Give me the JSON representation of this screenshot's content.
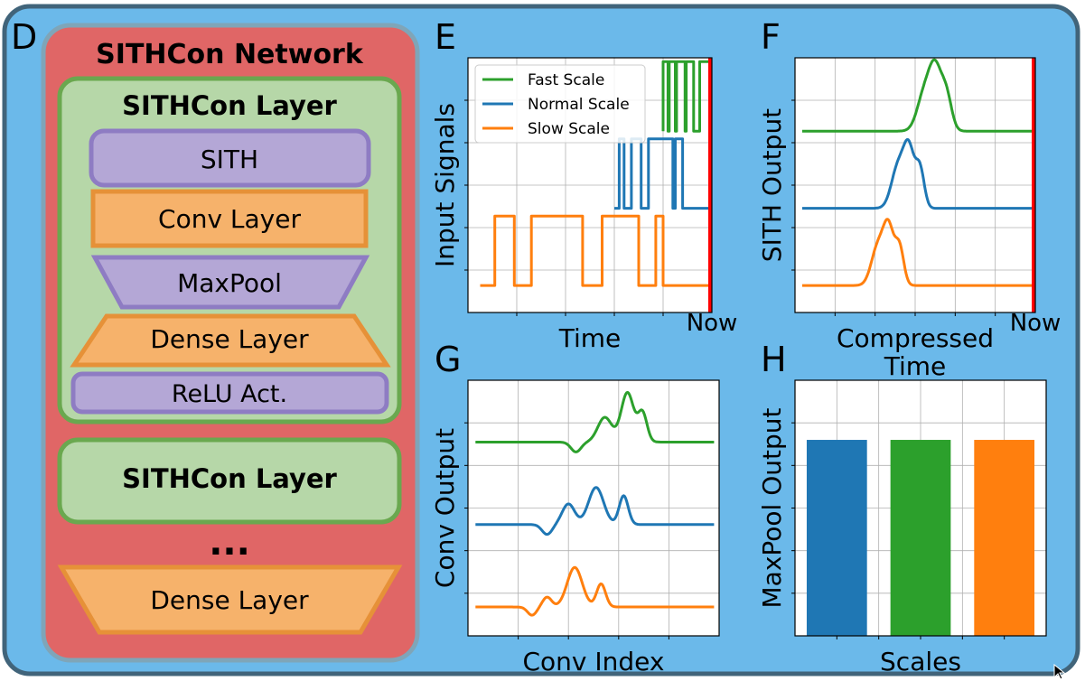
{
  "panel_letters": {
    "d": "D",
    "e": "E",
    "f": "F",
    "g": "G",
    "h": "H"
  },
  "network": {
    "title": "SITHCon Network",
    "layer1_title": "SITHCon Layer",
    "blocks": [
      "SITH",
      "Conv Layer",
      "MaxPool",
      "Dense Layer",
      "ReLU Act."
    ],
    "layer2_title": "SITHCon Layer",
    "ellipsis": "...",
    "final_block": "Dense Layer"
  },
  "colors": {
    "background": "#6bb9ea",
    "frame": "#41647a",
    "network_fill": "#e06666",
    "network_border": "#7fa5b8",
    "layer_fill": "#b6d7a8",
    "layer_border": "#6aa84f",
    "purple_fill": "#b4a7d6",
    "purple_border": "#8e7cc3",
    "orange_fill": "#f6b26b",
    "orange_border": "#e69138",
    "blue": "#1f77b4",
    "green": "#2ca02c",
    "orange": "#ff7f0e",
    "now": "#ff0000"
  },
  "chart_data": [
    {
      "panel": "E",
      "type": "line",
      "xlabel": "Time",
      "ylabel": "Input Signals",
      "now_label": "Now",
      "legend": [
        "Fast Scale",
        "Normal Scale",
        "Slow Scale"
      ],
      "legend_position": "top-left",
      "grid": true,
      "series": [
        {
          "name": "Fast Scale",
          "color": "#2ca02c",
          "base": 2,
          "amp": 0.9,
          "points": [
            [
              0.8,
              0
            ],
            [
              0.8,
              1
            ],
            [
              0.82,
              1
            ],
            [
              0.82,
              0
            ],
            [
              0.825,
              0
            ],
            [
              0.825,
              1
            ],
            [
              0.85,
              1
            ],
            [
              0.85,
              0
            ],
            [
              0.855,
              0
            ],
            [
              0.855,
              1
            ],
            [
              0.89,
              1
            ],
            [
              0.89,
              0
            ],
            [
              0.895,
              0
            ],
            [
              0.895,
              1
            ],
            [
              0.925,
              1
            ],
            [
              0.925,
              0
            ],
            [
              0.95,
              0
            ],
            [
              0.95,
              1
            ],
            [
              0.99,
              1
            ]
          ]
        },
        {
          "name": "Normal Scale",
          "color": "#1f77b4",
          "base": 1,
          "amp": 0.9,
          "points": [
            [
              0.6,
              0
            ],
            [
              0.62,
              0
            ],
            [
              0.62,
              1
            ],
            [
              0.64,
              1
            ],
            [
              0.64,
              0
            ],
            [
              0.67,
              0
            ],
            [
              0.67,
              1
            ],
            [
              0.71,
              1
            ],
            [
              0.71,
              0
            ],
            [
              0.74,
              0
            ],
            [
              0.74,
              1
            ],
            [
              0.84,
              1
            ],
            [
              0.84,
              0
            ],
            [
              0.85,
              0
            ],
            [
              0.85,
              1
            ],
            [
              0.88,
              1
            ],
            [
              0.88,
              0
            ],
            [
              0.99,
              0
            ]
          ]
        },
        {
          "name": "Slow Scale",
          "color": "#ff7f0e",
          "base": 0,
          "amp": 0.9,
          "points": [
            [
              0.05,
              0
            ],
            [
              0.11,
              0
            ],
            [
              0.11,
              1
            ],
            [
              0.19,
              1
            ],
            [
              0.19,
              0
            ],
            [
              0.26,
              0
            ],
            [
              0.26,
              1
            ],
            [
              0.47,
              1
            ],
            [
              0.47,
              0
            ],
            [
              0.55,
              0
            ],
            [
              0.55,
              1
            ],
            [
              0.7,
              1
            ],
            [
              0.7,
              0
            ],
            [
              0.77,
              0
            ],
            [
              0.77,
              1
            ],
            [
              0.8,
              1
            ],
            [
              0.8,
              0
            ],
            [
              0.99,
              0
            ]
          ]
        }
      ]
    },
    {
      "panel": "F",
      "type": "line",
      "xlabel": "Compressed\nTime",
      "ylabel": "SITH Output",
      "now_label": "Now",
      "grid": true,
      "series": [
        {
          "name": "Fast Scale",
          "color": "#2ca02c",
          "base": 2,
          "peaks": [
            [
              0.54,
              0.03,
              0.5
            ],
            [
              0.585,
              0.025,
              0.7
            ],
            [
              0.63,
              0.022,
              0.45
            ]
          ]
        },
        {
          "name": "Normal Scale",
          "color": "#1f77b4",
          "base": 1,
          "peaks": [
            [
              0.43,
              0.028,
              0.55
            ],
            [
              0.475,
              0.022,
              0.7
            ],
            [
              0.52,
              0.018,
              0.5
            ]
          ]
        },
        {
          "name": "Slow Scale",
          "color": "#ff7f0e",
          "base": 0,
          "peaks": [
            [
              0.345,
              0.027,
              0.5
            ],
            [
              0.39,
              0.022,
              0.7
            ],
            [
              0.435,
              0.018,
              0.48
            ]
          ]
        }
      ]
    },
    {
      "panel": "G",
      "type": "line",
      "xlabel": "Conv Index",
      "ylabel": "Conv Output",
      "grid": true,
      "series": [
        {
          "name": "Fast Scale",
          "color": "#2ca02c",
          "base": 2,
          "peaks": [
            [
              0.43,
              0.02,
              -0.12
            ],
            [
              0.545,
              0.028,
              0.3
            ],
            [
              0.635,
              0.025,
              0.6
            ],
            [
              0.695,
              0.018,
              0.35
            ]
          ]
        },
        {
          "name": "Normal Scale",
          "color": "#1f77b4",
          "base": 1,
          "peaks": [
            [
              0.315,
              0.02,
              -0.12
            ],
            [
              0.4,
              0.025,
              0.25
            ],
            [
              0.51,
              0.03,
              0.45
            ],
            [
              0.62,
              0.018,
              0.35
            ]
          ]
        },
        {
          "name": "Slow Scale",
          "color": "#ff7f0e",
          "base": 0,
          "peaks": [
            [
              0.255,
              0.018,
              -0.1
            ],
            [
              0.315,
              0.018,
              0.12
            ],
            [
              0.425,
              0.03,
              0.48
            ],
            [
              0.53,
              0.018,
              0.28
            ]
          ]
        }
      ]
    },
    {
      "panel": "H",
      "type": "bar",
      "xlabel": "Scales",
      "ylabel": "MaxPool Output",
      "grid": true,
      "ylim": [
        0,
        1.2
      ],
      "categories": [
        "Normal Scale",
        "Fast Scale",
        "Slow Scale"
      ],
      "values": [
        0.92,
        0.92,
        0.92
      ],
      "bar_colors": [
        "#1f77b4",
        "#2ca02c",
        "#ff7f0e"
      ]
    }
  ]
}
